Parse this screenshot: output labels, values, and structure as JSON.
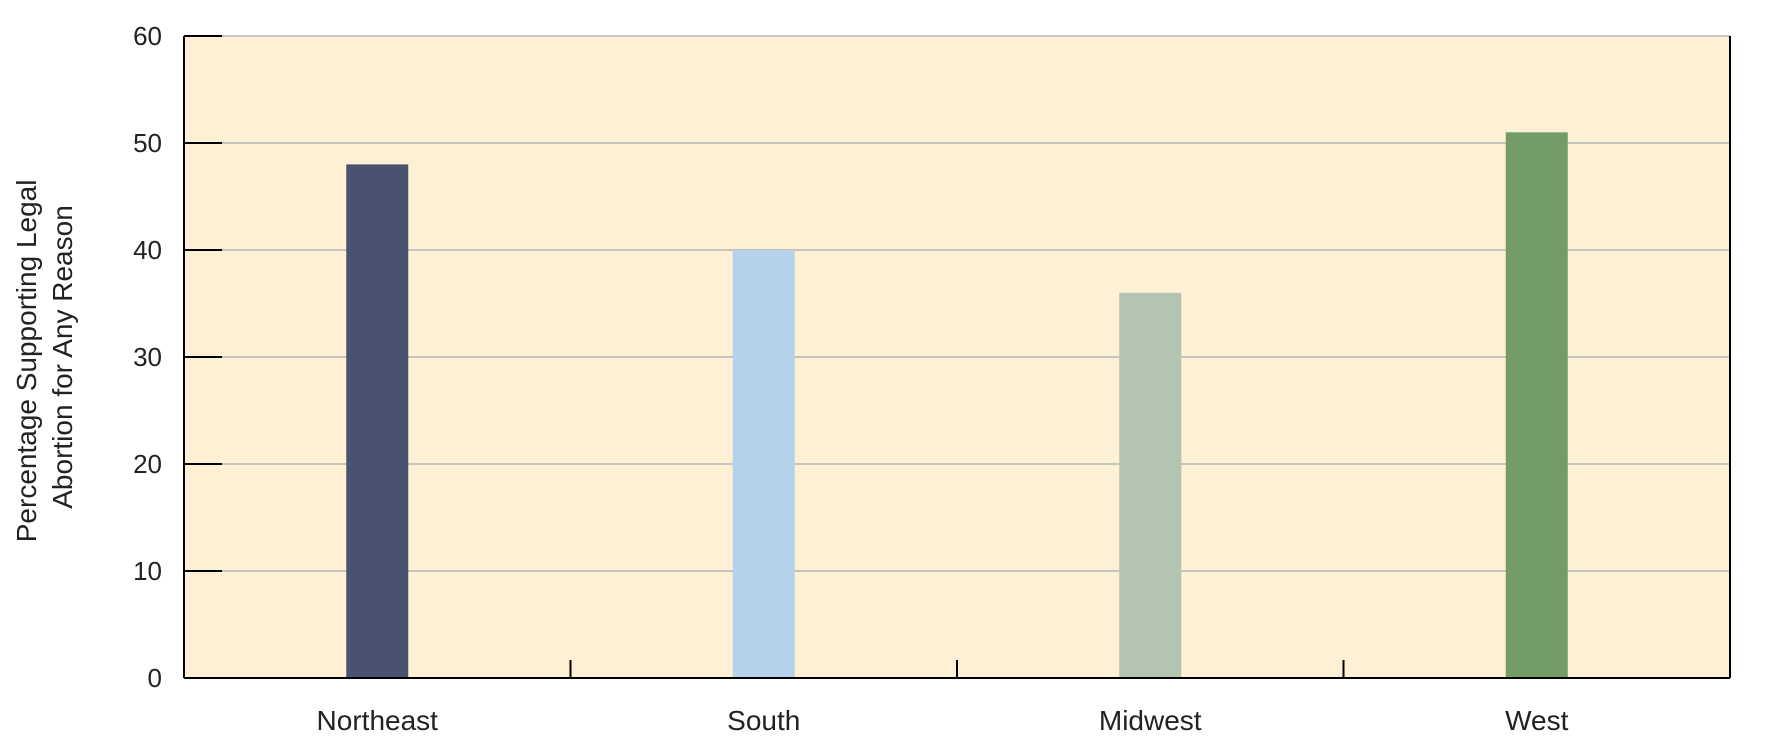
{
  "chart_data": {
    "type": "bar",
    "title": "",
    "xlabel": "",
    "ylabel_lines": [
      "Percentage Supporting Legal",
      "Abortion for Any Reason"
    ],
    "categories": [
      "Northeast",
      "South",
      "Midwest",
      "West"
    ],
    "values": [
      48,
      40,
      36,
      51
    ],
    "ylim": [
      0,
      60
    ],
    "yticks": [
      0,
      10,
      20,
      30,
      40,
      50,
      60
    ],
    "grid": true,
    "legend": "none",
    "colors": {
      "plot_background": "#fdf0d5",
      "gridline": "#b5b5b5",
      "axis": "#000000",
      "bars": [
        "#49536f",
        "#b5d2ea",
        "#b3c4b1",
        "#739c67"
      ]
    }
  }
}
